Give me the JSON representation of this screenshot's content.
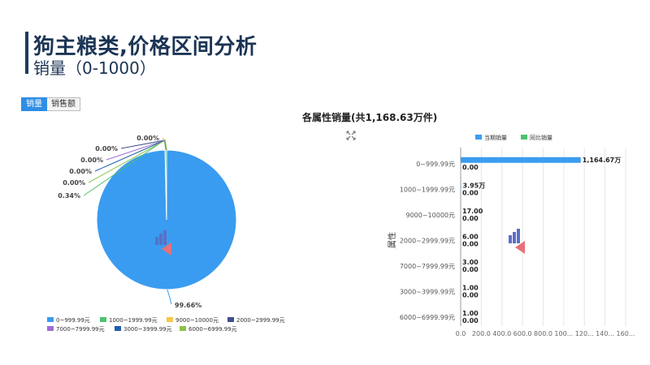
{
  "header": {
    "title": "狗主粮类,价格区间分析",
    "subtitle": "销量（0-1000）"
  },
  "tabs": [
    {
      "label": "销量",
      "active": true
    },
    {
      "label": "销售额",
      "active": false
    }
  ],
  "colors": {
    "accent": "#2f8de4",
    "title": "#1b3454",
    "series_current": "#3a9cf0",
    "series_yoy": "#4cc26f"
  },
  "chart_data": [
    {
      "type": "pie",
      "labels": [
        "0~999.99元",
        "1000~1999.99元",
        "9000~10000元",
        "2000~2999.99元",
        "7000~7999.99元",
        "3000~3999.99元",
        "6000~6999.99元"
      ],
      "values": [
        99.66,
        0.34,
        0.0,
        0.0,
        0.0,
        0.0,
        0.0
      ],
      "data_labels": [
        "99.66%",
        "0.34%",
        "0.00%",
        "0.00%",
        "0.00%",
        "0.00%",
        "0.00%"
      ],
      "colors": [
        "#3a9cf0",
        "#4cc26f",
        "#f5c944",
        "#3f4f8c",
        "#9b6fd4",
        "#1f5fb0",
        "#8bc34a"
      ],
      "legend_position": "bottom"
    },
    {
      "type": "bar",
      "orientation": "horizontal",
      "title": "各属性销量(共1,168.63万件)",
      "ylabel": "属性",
      "categories": [
        "0~999.99元",
        "1000~1999.99元",
        "9000~10000元",
        "2000~2999.99元",
        "7000~7999.99元",
        "3000~3999.99元",
        "6000~6999.99元"
      ],
      "series": [
        {
          "name": "当期销量",
          "values": [
            1164.67,
            3.95,
            0.0017,
            0.0006,
            0.0003,
            0.0001,
            0.0001
          ]
        },
        {
          "name": "同比销量",
          "values": [
            0,
            0,
            0,
            0,
            0,
            0,
            0
          ]
        }
      ],
      "data_labels_current": [
        "1,164.67万",
        "3.95万",
        "17.00",
        "6.00",
        "3.00",
        "1.00",
        "1.00"
      ],
      "data_labels_yoy": [
        "0.00",
        "0.00",
        "0.00",
        "0.00",
        "0.00",
        "0.00",
        "0.00"
      ],
      "x_ticks": [
        "0.0",
        "200.0",
        "400.0",
        "600.0",
        "800.0",
        "100...",
        "120...",
        "140...",
        "160..."
      ],
      "xlim": [
        0,
        1600
      ],
      "legend_position": "top"
    }
  ]
}
